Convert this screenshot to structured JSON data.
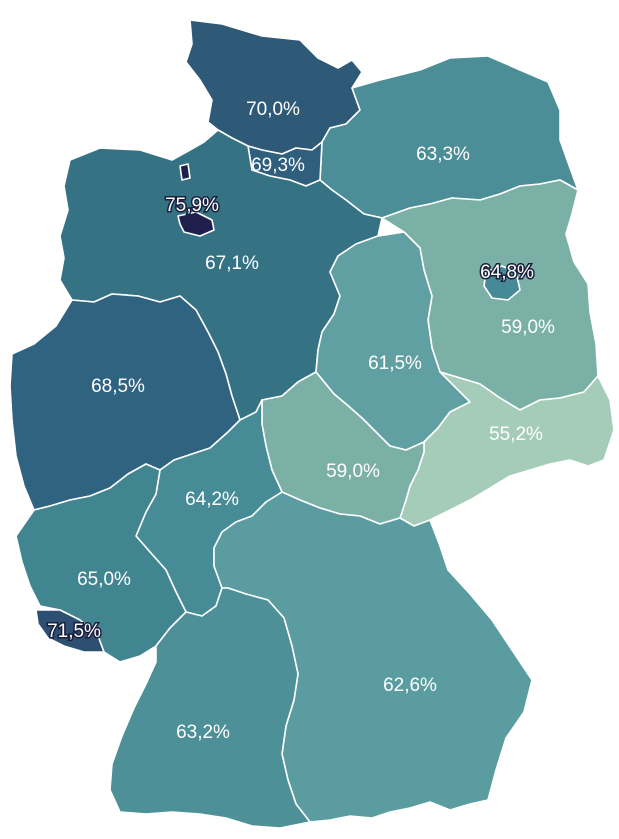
{
  "states": [
    {
      "id": "schleswig-holstein",
      "label": "70,0%",
      "value": 70.0,
      "color": "#2e5a78"
    },
    {
      "id": "hamburg",
      "label": "69,3%",
      "value": 69.3,
      "color": "#2f5f7c"
    },
    {
      "id": "mecklenburg-vorpommern",
      "label": "63,3%",
      "value": 63.3,
      "color": "#4b8e97"
    },
    {
      "id": "bremen",
      "label": "75,9%",
      "value": 75.9,
      "color": "#1e1f4d"
    },
    {
      "id": "niedersachsen",
      "label": "67,1%",
      "value": 67.1,
      "color": "#357283"
    },
    {
      "id": "berlin",
      "label": "64,8%",
      "value": 64.8,
      "color": "#478a97"
    },
    {
      "id": "brandenburg",
      "label": "59,0%",
      "value": 59.0,
      "color": "#7bb0a7"
    },
    {
      "id": "sachsen-anhalt",
      "label": "61,5%",
      "value": 61.5,
      "color": "#60a0a2"
    },
    {
      "id": "nordrhein-westfalen",
      "label": "68,5%",
      "value": 68.5,
      "color": "#2f6380"
    },
    {
      "id": "sachsen",
      "label": "55,2%",
      "value": 55.2,
      "color": "#a5cbb9"
    },
    {
      "id": "thueringen",
      "label": "59,0%",
      "value": 59.0,
      "color": "#7bb0a7"
    },
    {
      "id": "hessen",
      "label": "64,2%",
      "value": 64.2,
      "color": "#468b96"
    },
    {
      "id": "rheinland-pfalz",
      "label": "65,0%",
      "value": 65.0,
      "color": "#418591"
    },
    {
      "id": "saarland",
      "label": "71,5%",
      "value": 71.5,
      "color": "#2c4f72"
    },
    {
      "id": "bayern",
      "label": "62,6%",
      "value": 62.6,
      "color": "#5a9c9f"
    },
    {
      "id": "baden-wuerttemberg",
      "label": "63,2%",
      "value": 63.2,
      "color": "#4d9098"
    }
  ]
}
